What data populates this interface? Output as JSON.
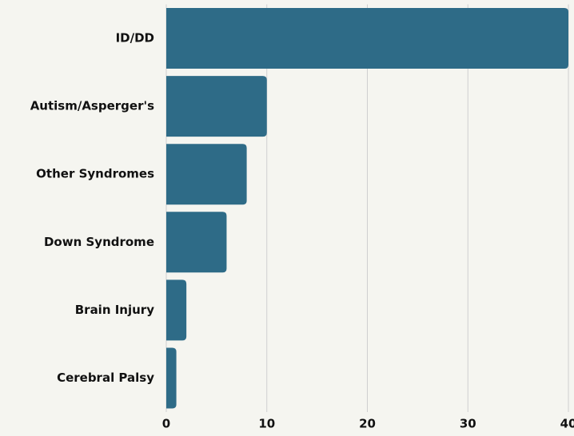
{
  "chart_data": {
    "type": "bar",
    "orientation": "horizontal",
    "categories": [
      "ID/DD",
      "Autism/Asperger's",
      "Other Syndromes",
      "Down Syndrome",
      "Brain Injury",
      "Cerebral Palsy"
    ],
    "values": [
      40,
      10,
      8,
      6,
      2,
      1
    ],
    "color": "#2e6b87",
    "xlim": [
      0,
      40
    ],
    "xticks": [
      0,
      10,
      20,
      30,
      40
    ],
    "grid": true
  }
}
